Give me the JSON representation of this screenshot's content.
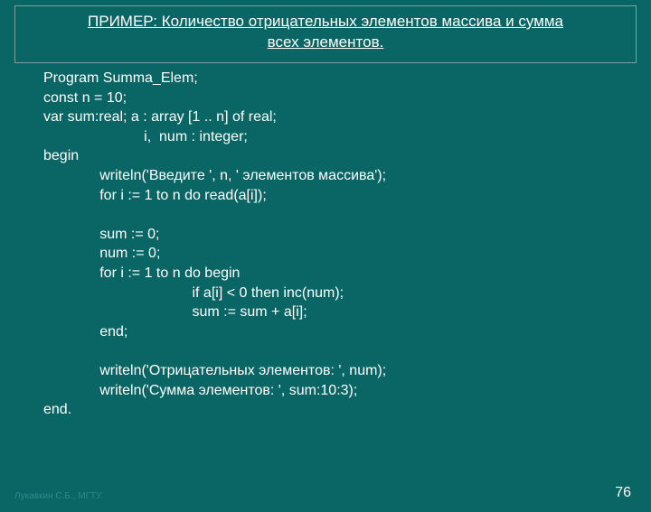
{
  "title": {
    "prefix": "ПРИМЕР:",
    "line1": " Количество отрицательных элементов массива и сумма",
    "line2": "всех элементов."
  },
  "code_lines": [
    "Program Summa_Elem;",
    "const n = 10;",
    "var sum:real; a : array [1 .. n] of real;",
    "                         i,  num : integer;",
    "begin",
    "              writeln('Введите ', n, ' элементов массива');",
    "              for i := 1 to n do read(a[i]);",
    "",
    "              sum := 0;",
    "              num := 0;",
    "              for i := 1 to n do begin",
    "                                     if a[i] < 0 then inc(num);",
    "                                     sum := sum + a[i];",
    "              end;",
    "",
    "              writeln('Отрицательных элементов: ', num);",
    "              writeln('Сумма элементов: ', sum:10:3);",
    "end."
  ],
  "footer_left": "Лукавкин С.Б., МГТУ.",
  "page_number": "76",
  "colors": {
    "background": "#0a6565",
    "text": "#ffffff",
    "border": "#7aa0a0",
    "footer_dim": "#2e8a8a"
  }
}
